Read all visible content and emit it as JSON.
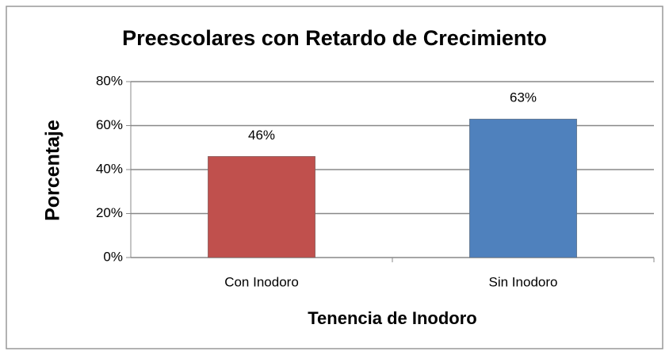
{
  "chart_data": {
    "type": "bar",
    "title": "Preescolares con Retardo de Crecimiento",
    "xlabel": "Tenencia de Inodoro",
    "ylabel": "Porcentaje",
    "categories": [
      "Con Inodoro",
      "Sin Inodoro"
    ],
    "values": [
      46,
      63
    ],
    "value_labels": [
      "46%",
      "63%"
    ],
    "colors": [
      "#c0504d",
      "#4f81bd"
    ],
    "ylim": [
      0,
      80
    ],
    "yticks": [
      {
        "value": 0,
        "label": "0%"
      },
      {
        "value": 20,
        "label": "20%"
      },
      {
        "value": 40,
        "label": "40%"
      },
      {
        "value": 60,
        "label": "60%"
      },
      {
        "value": 80,
        "label": "80%"
      }
    ],
    "grid": true
  }
}
